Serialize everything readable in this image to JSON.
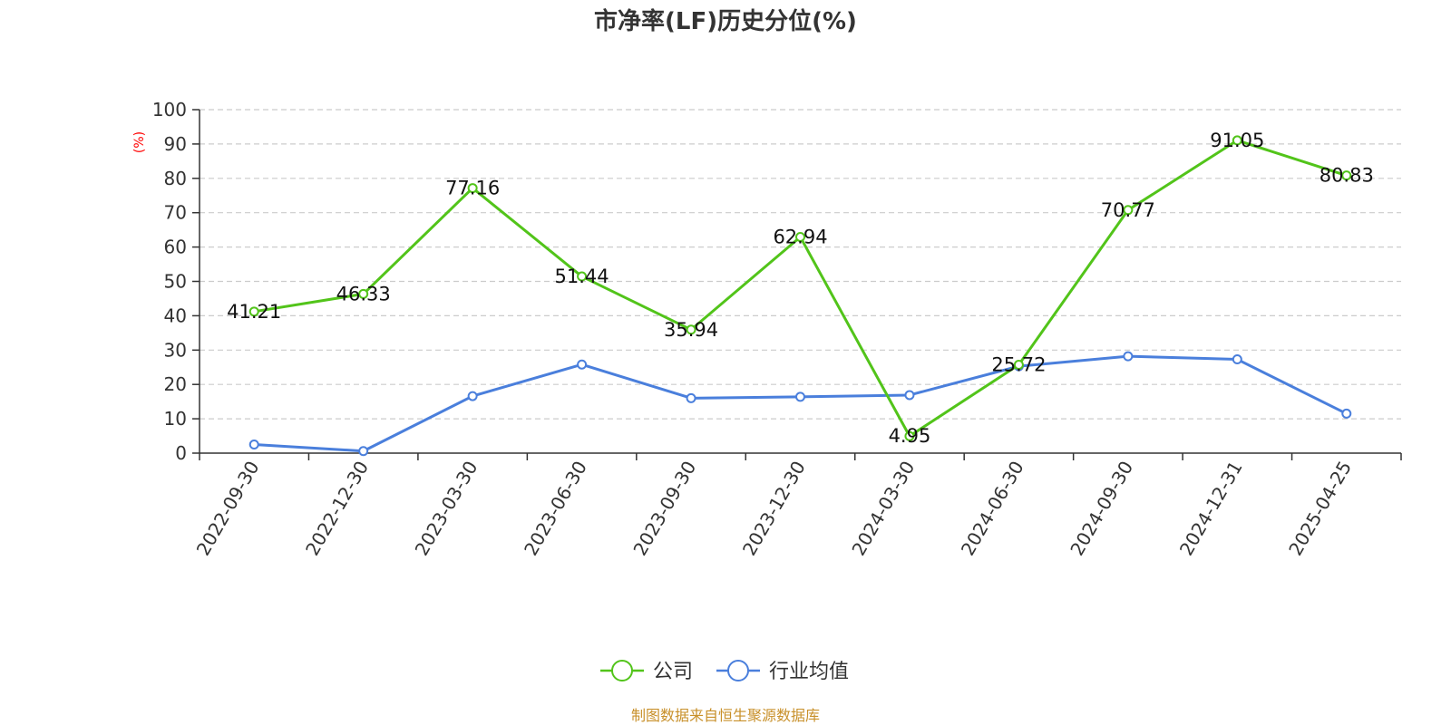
{
  "chart_data": {
    "type": "line",
    "title": "市净率(LF)历史分位(%)",
    "ylabel": "(%)",
    "xlabel": "",
    "ylim": [
      0,
      100
    ],
    "yticks": [
      0,
      10,
      20,
      30,
      40,
      50,
      60,
      70,
      80,
      90,
      100
    ],
    "grid": true,
    "legend_position": "bottom",
    "categories": [
      "2022-09-30",
      "2022-12-30",
      "2023-03-30",
      "2023-06-30",
      "2023-09-30",
      "2023-12-30",
      "2024-03-30",
      "2024-06-30",
      "2024-09-30",
      "2024-12-31",
      "2025-04-25"
    ],
    "series": [
      {
        "name": "公司",
        "color": "#52c41a",
        "show_labels": true,
        "values": [
          41.21,
          46.33,
          77.16,
          51.44,
          35.94,
          62.94,
          4.95,
          25.72,
          70.77,
          91.05,
          80.83
        ]
      },
      {
        "name": "行业均值",
        "color": "#4a7fdc",
        "show_labels": false,
        "values": [
          2.5,
          0.6,
          16.6,
          25.8,
          16.0,
          16.4,
          16.9,
          25.3,
          28.2,
          27.3,
          11.5
        ]
      }
    ],
    "source": "制图数据来自恒生聚源数据库"
  }
}
